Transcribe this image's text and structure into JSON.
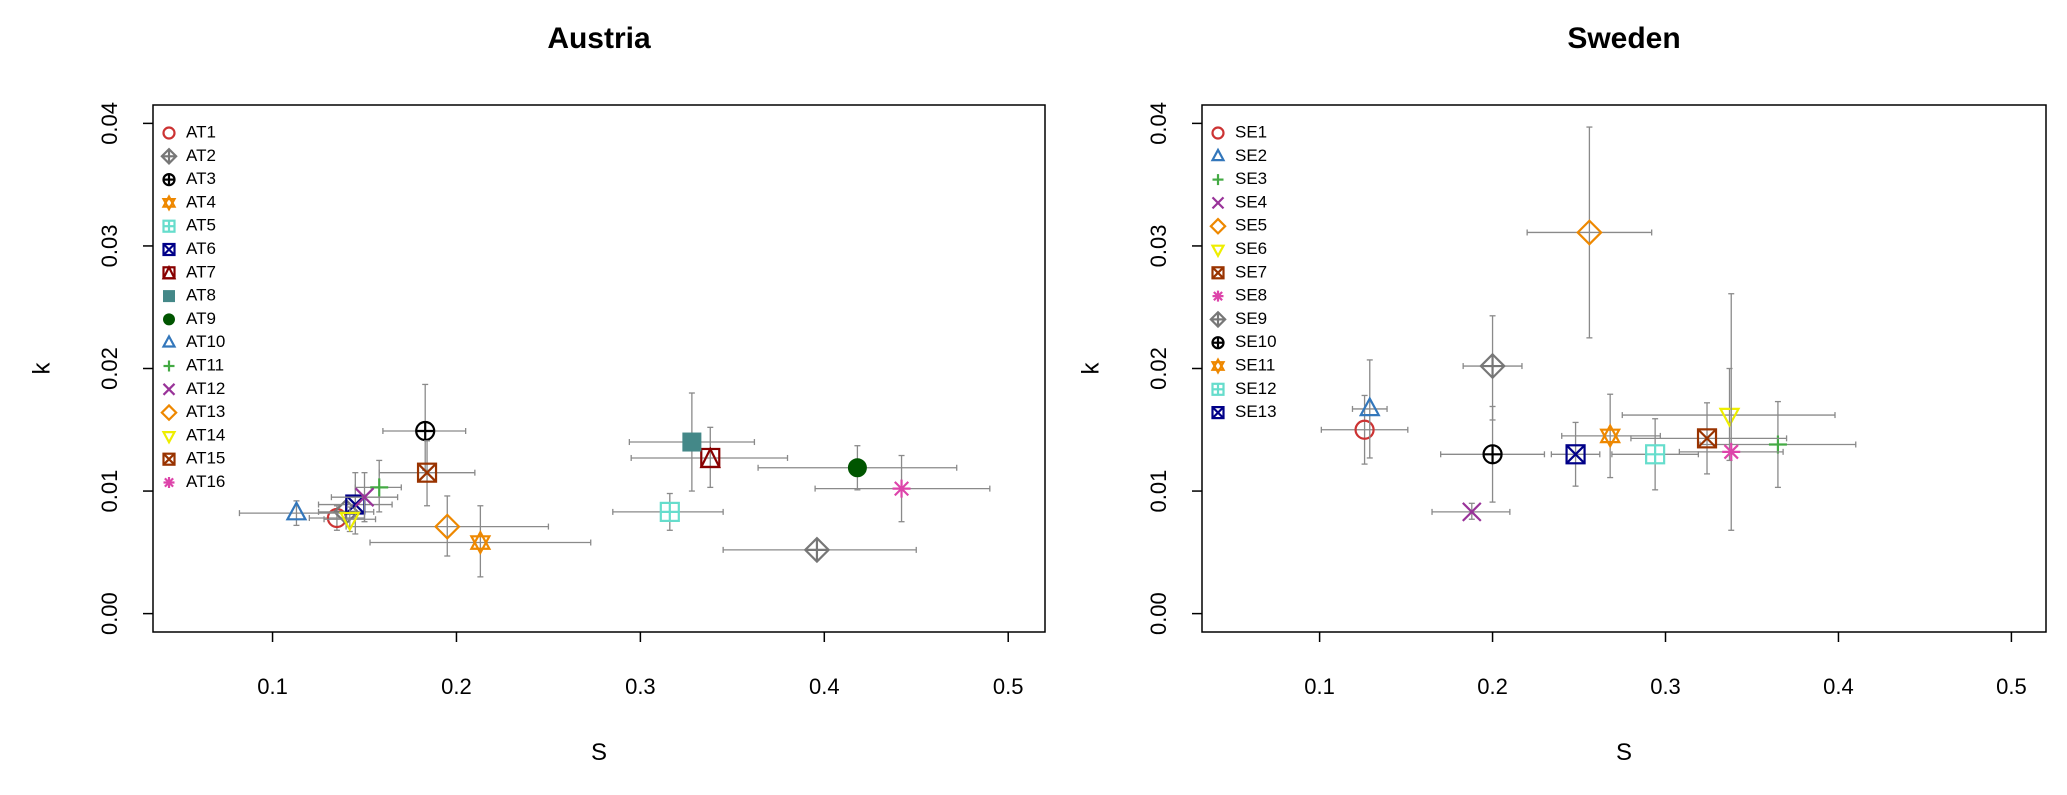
{
  "chart_data": [
    {
      "type": "scatter",
      "title": "Austria",
      "xlabel": "S",
      "ylabel": "k",
      "xlim": [
        0.035,
        0.52
      ],
      "ylim": [
        -0.0015,
        0.0415
      ],
      "xticks": [
        "0.1",
        "0.2",
        "0.3",
        "0.4",
        "0.5"
      ],
      "xtick_values": [
        0.1,
        0.2,
        0.3,
        0.4,
        0.5
      ],
      "yticks": [
        "0.00",
        "0.01",
        "0.02",
        "0.03",
        "0.04"
      ],
      "ytick_values": [
        0.0,
        0.01,
        0.02,
        0.03,
        0.04
      ],
      "legend_position": "top-left",
      "series": [
        {
          "name": "AT1",
          "marker": "circle",
          "color": "#cc3333",
          "x": 0.135,
          "y": 0.0078,
          "xerr": [
            0.12,
            0.15
          ],
          "yerr": [
            0.0068,
            0.0088
          ]
        },
        {
          "name": "AT2",
          "marker": "diamond-plus",
          "color": "#777777",
          "x": 0.14,
          "y": 0.0083,
          "xerr": [
            0.125,
            0.155
          ],
          "yerr": [
            0.0075,
            0.0091
          ]
        },
        {
          "name": "AT3",
          "marker": "circle-plus",
          "color": "#000000",
          "x": 0.183,
          "y": 0.0149,
          "xerr": [
            0.16,
            0.205
          ],
          "yerr": [
            0.0117,
            0.0187
          ]
        },
        {
          "name": "AT4",
          "marker": "star-triangle",
          "color": "#ee8800",
          "x": 0.213,
          "y": 0.0058,
          "xerr": [
            0.153,
            0.273
          ],
          "yerr": [
            0.003,
            0.0088
          ]
        },
        {
          "name": "AT5",
          "marker": "square-plus",
          "color": "#66ddcc",
          "x": 0.316,
          "y": 0.0083,
          "xerr": [
            0.285,
            0.345
          ],
          "yerr": [
            0.0068,
            0.0098
          ]
        },
        {
          "name": "AT6",
          "marker": "square-x",
          "color": "#000088",
          "x": 0.145,
          "y": 0.0089,
          "xerr": [
            0.125,
            0.165
          ],
          "yerr": [
            0.0065,
            0.0115
          ]
        },
        {
          "name": "AT7",
          "marker": "square-triangle",
          "color": "#880000",
          "x": 0.338,
          "y": 0.0127,
          "xerr": [
            0.295,
            0.38
          ],
          "yerr": [
            0.0103,
            0.0152
          ]
        },
        {
          "name": "AT8",
          "marker": "square-filled",
          "color": "#448888",
          "x": 0.328,
          "y": 0.014,
          "xerr": [
            0.294,
            0.362
          ],
          "yerr": [
            0.01,
            0.018
          ]
        },
        {
          "name": "AT9",
          "marker": "circle-filled",
          "color": "#005500",
          "x": 0.418,
          "y": 0.0119,
          "xerr": [
            0.364,
            0.472
          ],
          "yerr": [
            0.0101,
            0.0137
          ]
        },
        {
          "name": "AT10",
          "marker": "triangle",
          "color": "#3377bb",
          "x": 0.113,
          "y": 0.0082,
          "xerr": [
            0.082,
            0.145
          ],
          "yerr": [
            0.0072,
            0.0092
          ]
        },
        {
          "name": "AT11",
          "marker": "plus",
          "color": "#44aa44",
          "x": 0.158,
          "y": 0.0103,
          "xerr": [
            0.145,
            0.17
          ],
          "yerr": [
            0.0083,
            0.0125
          ]
        },
        {
          "name": "AT12",
          "marker": "x",
          "color": "#993399",
          "x": 0.15,
          "y": 0.0095,
          "xerr": [
            0.132,
            0.168
          ],
          "yerr": [
            0.0075,
            0.0115
          ]
        },
        {
          "name": "AT13",
          "marker": "diamond",
          "color": "#ee8800",
          "x": 0.195,
          "y": 0.0071,
          "xerr": [
            0.14,
            0.25
          ],
          "yerr": [
            0.0047,
            0.0096
          ]
        },
        {
          "name": "AT14",
          "marker": "triangle-down",
          "color": "#eeee00",
          "x": 0.142,
          "y": 0.0077,
          "xerr": [
            0.128,
            0.156
          ],
          "yerr": [
            0.0067,
            0.0087
          ]
        },
        {
          "name": "AT15",
          "marker": "square-x",
          "color": "#993300",
          "x": 0.184,
          "y": 0.0115,
          "xerr": [
            0.158,
            0.21
          ],
          "yerr": [
            0.0088,
            0.0141
          ]
        },
        {
          "name": "AT16",
          "marker": "asterisk",
          "color": "#dd44aa",
          "x": 0.442,
          "y": 0.0102,
          "xerr": [
            0.395,
            0.49
          ],
          "yerr": [
            0.0075,
            0.0129
          ]
        },
        {
          "name": "",
          "marker": "diamond-plus",
          "color": "#777777",
          "x": 0.396,
          "y": 0.0052,
          "xerr": [
            0.345,
            0.45
          ],
          "yerr": [
            0.0044,
            0.006
          ]
        }
      ]
    },
    {
      "type": "scatter",
      "title": "Sweden",
      "xlabel": "S",
      "ylabel": "k",
      "xlim": [
        0.032,
        0.52
      ],
      "ylim": [
        -0.0015,
        0.0415
      ],
      "xticks": [
        "0.1",
        "0.2",
        "0.3",
        "0.4",
        "0.5"
      ],
      "xtick_values": [
        0.1,
        0.2,
        0.3,
        0.4,
        0.5
      ],
      "yticks": [
        "0.00",
        "0.01",
        "0.02",
        "0.03",
        "0.04"
      ],
      "ytick_values": [
        0.0,
        0.01,
        0.02,
        0.03,
        0.04
      ],
      "legend_position": "top-left",
      "series": [
        {
          "name": "SE1",
          "marker": "circle",
          "color": "#cc3333",
          "x": 0.126,
          "y": 0.015,
          "xerr": [
            0.101,
            0.151
          ],
          "yerr": [
            0.0122,
            0.0178
          ]
        },
        {
          "name": "SE2",
          "marker": "triangle",
          "color": "#3377bb",
          "x": 0.129,
          "y": 0.0167,
          "xerr": [
            0.119,
            0.139
          ],
          "yerr": [
            0.0127,
            0.0207
          ]
        },
        {
          "name": "SE3",
          "marker": "plus",
          "color": "#44aa44",
          "x": 0.365,
          "y": 0.0138,
          "xerr": [
            0.32,
            0.41
          ],
          "yerr": [
            0.0103,
            0.0173
          ]
        },
        {
          "name": "SE4",
          "marker": "x",
          "color": "#993399",
          "x": 0.188,
          "y": 0.0083,
          "xerr": [
            0.165,
            0.21
          ],
          "yerr": [
            0.0077,
            0.009
          ]
        },
        {
          "name": "SE5",
          "marker": "diamond",
          "color": "#ee8800",
          "x": 0.256,
          "y": 0.0311,
          "xerr": [
            0.22,
            0.292
          ],
          "yerr": [
            0.0225,
            0.0397
          ]
        },
        {
          "name": "SE6",
          "marker": "triangle-down",
          "color": "#eeee00",
          "x": 0.337,
          "y": 0.0162,
          "xerr": [
            0.275,
            0.398
          ],
          "yerr": [
            0.0125,
            0.02
          ]
        },
        {
          "name": "SE7",
          "marker": "square-x",
          "color": "#993300",
          "x": 0.324,
          "y": 0.0143,
          "xerr": [
            0.28,
            0.37
          ],
          "yerr": [
            0.0114,
            0.0172
          ]
        },
        {
          "name": "SE8",
          "marker": "asterisk",
          "color": "#dd44aa",
          "x": 0.338,
          "y": 0.0132,
          "xerr": [
            0.308,
            0.368
          ],
          "yerr": [
            0.0068,
            0.0261
          ]
        },
        {
          "name": "SE9",
          "marker": "diamond-plus",
          "color": "#777777",
          "x": 0.2,
          "y": 0.0202,
          "xerr": [
            0.183,
            0.217
          ],
          "yerr": [
            0.0158,
            0.0243
          ]
        },
        {
          "name": "SE10",
          "marker": "circle-plus",
          "color": "#000000",
          "x": 0.2,
          "y": 0.013,
          "xerr": [
            0.17,
            0.23
          ],
          "yerr": [
            0.0091,
            0.0169
          ]
        },
        {
          "name": "SE11",
          "marker": "star-triangle",
          "color": "#ee8800",
          "x": 0.268,
          "y": 0.0145,
          "xerr": [
            0.24,
            0.297
          ],
          "yerr": [
            0.0111,
            0.0179
          ]
        },
        {
          "name": "SE12",
          "marker": "square-plus",
          "color": "#66ddcc",
          "x": 0.294,
          "y": 0.013,
          "xerr": [
            0.269,
            0.319
          ],
          "yerr": [
            0.0101,
            0.0159
          ]
        },
        {
          "name": "SE13",
          "marker": "square-x",
          "color": "#000088",
          "x": 0.248,
          "y": 0.013,
          "xerr": [
            0.234,
            0.262
          ],
          "yerr": [
            0.0104,
            0.0156
          ]
        }
      ]
    }
  ]
}
